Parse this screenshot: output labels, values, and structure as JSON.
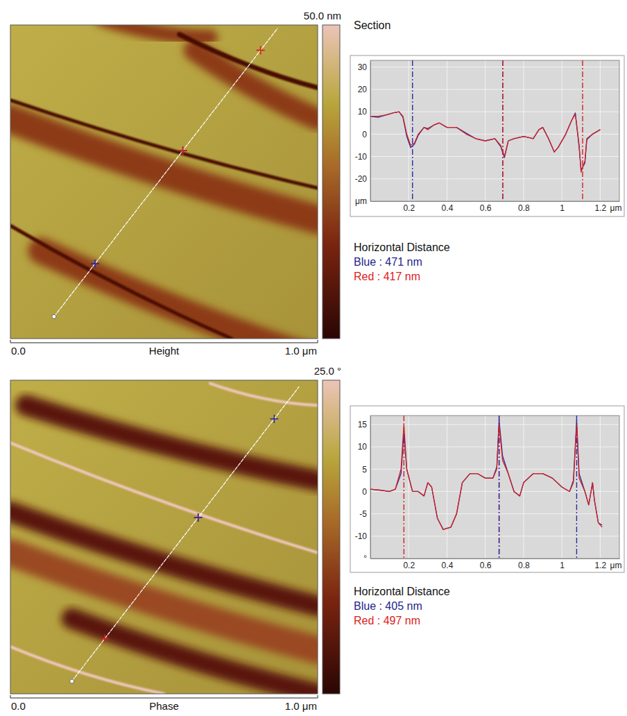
{
  "section_heading": "Section",
  "images": [
    {
      "title": "Height",
      "axis_start": "0.0",
      "axis_end": "1.0 μm",
      "scale_label": "50.0 nm"
    },
    {
      "title": "Phase",
      "axis_start": "0.0",
      "axis_end": "1.0 μm",
      "scale_label": "25.0 °"
    }
  ],
  "chart_data": [
    {
      "type": "line",
      "x": [
        0,
        0.04,
        0.08,
        0.12,
        0.15,
        0.17,
        0.19,
        0.21,
        0.23,
        0.25,
        0.28,
        0.3,
        0.33,
        0.36,
        0.4,
        0.45,
        0.5,
        0.55,
        0.6,
        0.65,
        0.68,
        0.7,
        0.72,
        0.75,
        0.8,
        0.85,
        0.88,
        0.9,
        0.93,
        0.96,
        0.98,
        1.02,
        1.05,
        1.07,
        1.09,
        1.1,
        1.12,
        1.13,
        1.16,
        1.2
      ],
      "series": [
        {
          "color": "#2a2aa0",
          "values": [
            8,
            7.5,
            8.5,
            9.5,
            10,
            7.5,
            -1,
            -6,
            -4.5,
            -0.5,
            3,
            2.5,
            4,
            5,
            3,
            3,
            0.5,
            -2,
            -3,
            -2,
            -5.5,
            -10.5,
            -3,
            -2,
            -1,
            -2,
            2,
            3,
            -2,
            -8,
            -6,
            0,
            6,
            9.5,
            -6,
            -16,
            -13,
            -2.5,
            0,
            2
          ]
        },
        {
          "color": "#d42020",
          "values": [
            8,
            8,
            8.5,
            9.5,
            10,
            8,
            0,
            -5,
            -4,
            0,
            3,
            2,
            4,
            5,
            3,
            3,
            0,
            -2,
            -3,
            -2,
            -5,
            -10,
            -3,
            -2,
            -1,
            -2,
            2,
            3,
            -2,
            -8,
            -6,
            0,
            6,
            9,
            -5,
            -17,
            -12,
            -2,
            0,
            2
          ]
        }
      ],
      "xlim": [
        0,
        1.3
      ],
      "xticks": [
        0.2,
        0.4,
        0.6,
        0.8,
        1,
        1.2,
        {
          "value": 1.28,
          "label": "μm"
        }
      ],
      "ylim": [
        -30,
        33
      ],
      "yticks": [
        {
          "value": -30,
          "label": "μm"
        },
        -20,
        -10,
        0,
        10,
        20,
        30
      ],
      "grid": true,
      "cursors": [
        {
          "color": "#2a2aa0",
          "x": [
            0.22,
            0.691
          ]
        },
        {
          "color": "#d42020",
          "x": [
            0.691,
            1.108
          ]
        }
      ],
      "distance_heading": "Horizontal Distance",
      "readouts": [
        {
          "text": "Blue : 471 nm",
          "color": "#23238c"
        },
        {
          "text": "Red : 417 nm",
          "color": "#e02020"
        }
      ]
    },
    {
      "type": "line",
      "x": [
        0,
        0.05,
        0.1,
        0.13,
        0.16,
        0.175,
        0.19,
        0.22,
        0.25,
        0.28,
        0.3,
        0.32,
        0.35,
        0.38,
        0.42,
        0.45,
        0.48,
        0.52,
        0.56,
        0.6,
        0.64,
        0.66,
        0.672,
        0.69,
        0.72,
        0.75,
        0.78,
        0.8,
        0.85,
        0.9,
        0.95,
        1.0,
        1.04,
        1.06,
        1.077,
        1.09,
        1.12,
        1.14,
        1.16,
        1.17,
        1.19,
        1.21
      ],
      "series": [
        {
          "color": "#2a2aa0",
          "values": [
            0.5,
            0.3,
            0,
            0.5,
            4,
            13,
            5,
            0,
            0,
            -1,
            2,
            1,
            -6,
            -8.5,
            -8,
            -5,
            2,
            4,
            4,
            3,
            3,
            5.5,
            16,
            8,
            4,
            0,
            -1,
            2,
            4,
            4,
            3,
            1,
            0,
            2.5,
            16,
            4,
            0,
            -3,
            2,
            -2,
            -7,
            -7.5
          ]
        },
        {
          "color": "#d42020",
          "values": [
            0.5,
            0.3,
            0,
            0.5,
            5,
            15,
            5,
            0,
            0,
            -1,
            2,
            1,
            -6,
            -8.5,
            -8,
            -5,
            2,
            4,
            4,
            3,
            3,
            5,
            15,
            7,
            4,
            0,
            -1,
            2,
            4,
            4,
            3,
            1,
            0,
            2,
            15,
            3,
            0,
            -3,
            2,
            -2,
            -7,
            -8
          ]
        }
      ],
      "xlim": [
        0,
        1.3
      ],
      "xticks": [
        0.2,
        0.4,
        0.6,
        0.8,
        1,
        1.2,
        {
          "value": 1.28,
          "label": "μm"
        }
      ],
      "ylim": [
        -15,
        17
      ],
      "yticks": [
        {
          "value": -15,
          "label": "°"
        },
        -10,
        -5,
        0,
        5,
        10,
        15
      ],
      "grid": true,
      "cursors": [
        {
          "color": "#d42020",
          "x": [
            0.175,
            0.672
          ]
        },
        {
          "color": "#2a2aa0",
          "x": [
            0.672,
            1.077
          ]
        }
      ],
      "distance_heading": "Horizontal Distance",
      "readouts": [
        {
          "text": "Blue : 405 nm",
          "color": "#23238c"
        },
        {
          "text": "Red : 497 nm",
          "color": "#e02020"
        }
      ]
    }
  ]
}
